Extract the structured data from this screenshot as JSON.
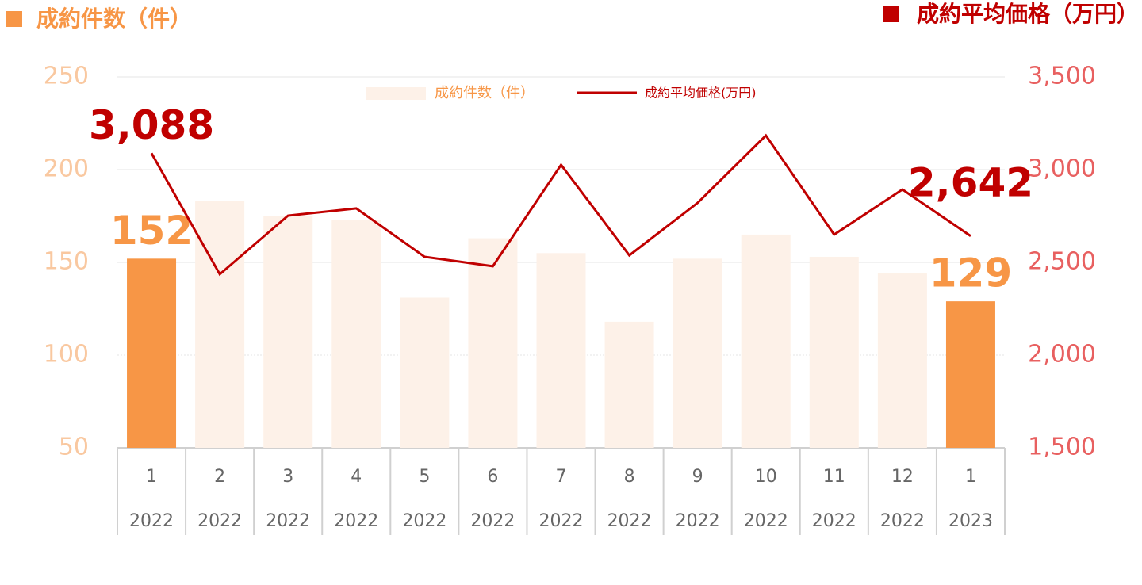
{
  "chart_data": {
    "type": "bar_line",
    "y_label": "成約件数（件）",
    "y2_label": "成約平均価格（万円）",
    "categories": [
      "1",
      "2",
      "3",
      "4",
      "5",
      "6",
      "7",
      "8",
      "9",
      "10",
      "11",
      "12",
      "1"
    ],
    "category_years": [
      "2022",
      "2022",
      "2022",
      "2022",
      "2022",
      "2022",
      "2022",
      "2022",
      "2022",
      "2022",
      "2022",
      "2022",
      "2023"
    ],
    "series": [
      {
        "name": "成約件数（件）",
        "type": "bar",
        "color": "#fdf1e8",
        "highlight_color": "#f79646",
        "values": [
          152,
          183,
          175,
          173,
          131,
          163,
          155,
          118,
          152,
          165,
          153,
          144,
          129
        ],
        "value_labels": [
          "152",
          null,
          null,
          null,
          null,
          null,
          null,
          null,
          null,
          null,
          null,
          null,
          "129"
        ]
      },
      {
        "name": "成約平均価格(万円)",
        "type": "line",
        "axis": "y2",
        "color": "#c00000",
        "values": [
          3088,
          2436,
          2752,
          2791,
          2530,
          2479,
          3026,
          2538,
          2821,
          3184,
          2650,
          2893,
          2642
        ],
        "value_labels": [
          "3,088",
          null,
          null,
          null,
          null,
          null,
          null,
          null,
          null,
          null,
          null,
          null,
          "2,642"
        ]
      }
    ],
    "ylim": [
      50,
      250
    ],
    "yticks": [
      50,
      100,
      150,
      200,
      250
    ],
    "y2lim": [
      1500,
      3500
    ],
    "y2ticks": [
      {
        "value": 1500,
        "label": "1,500"
      },
      {
        "value": 2000,
        "label": "2,000"
      },
      {
        "value": 2500,
        "label": "2,500"
      },
      {
        "value": 3000,
        "label": "3,000"
      },
      {
        "value": 3500,
        "label": "3,500"
      }
    ],
    "grid": true,
    "legend": "top"
  }
}
